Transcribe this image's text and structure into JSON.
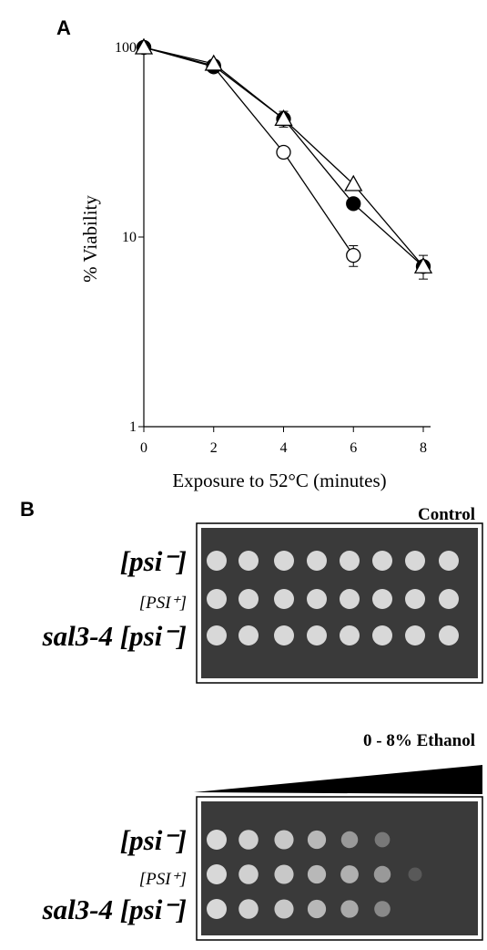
{
  "panel_a": {
    "label": "A"
  },
  "chart_data": {
    "type": "line",
    "x_label": "Exposure to 52°C (minutes)",
    "y_label": "% Viability",
    "x": [
      0,
      2,
      4,
      6,
      8
    ],
    "series": [
      {
        "marker": "open-circle",
        "color": "#000000",
        "values": [
          100,
          79,
          28,
          8,
          null
        ],
        "errors": [
          null,
          null,
          null,
          1,
          null
        ]
      },
      {
        "marker": "filled-circle",
        "color": "#000000",
        "values": [
          100,
          80,
          42,
          15,
          7
        ],
        "errors": [
          null,
          null,
          null,
          null,
          null
        ]
      },
      {
        "marker": "open-triangle",
        "color": "#000000",
        "values": [
          100,
          82,
          42,
          19,
          7
        ],
        "errors": [
          null,
          null,
          4,
          null,
          1
        ]
      }
    ],
    "xlim": [
      0,
      8
    ],
    "xticks": [
      0,
      2,
      4,
      6,
      8
    ],
    "ylim": [
      1,
      100
    ],
    "yticks": [
      1,
      10,
      100
    ],
    "yscale": "log",
    "grid": false
  },
  "panel_b": {
    "label": "B",
    "plates": [
      {
        "title": "Control",
        "rows": [
          "[psi⁻]",
          "[PSI⁺]",
          "sal3-4 [psi⁻]"
        ]
      },
      {
        "title": "0 - 8% Ethanol",
        "rows": [
          "[psi⁻]",
          "[PSI⁺]",
          "sal3-4 [psi⁻]"
        ]
      }
    ]
  }
}
